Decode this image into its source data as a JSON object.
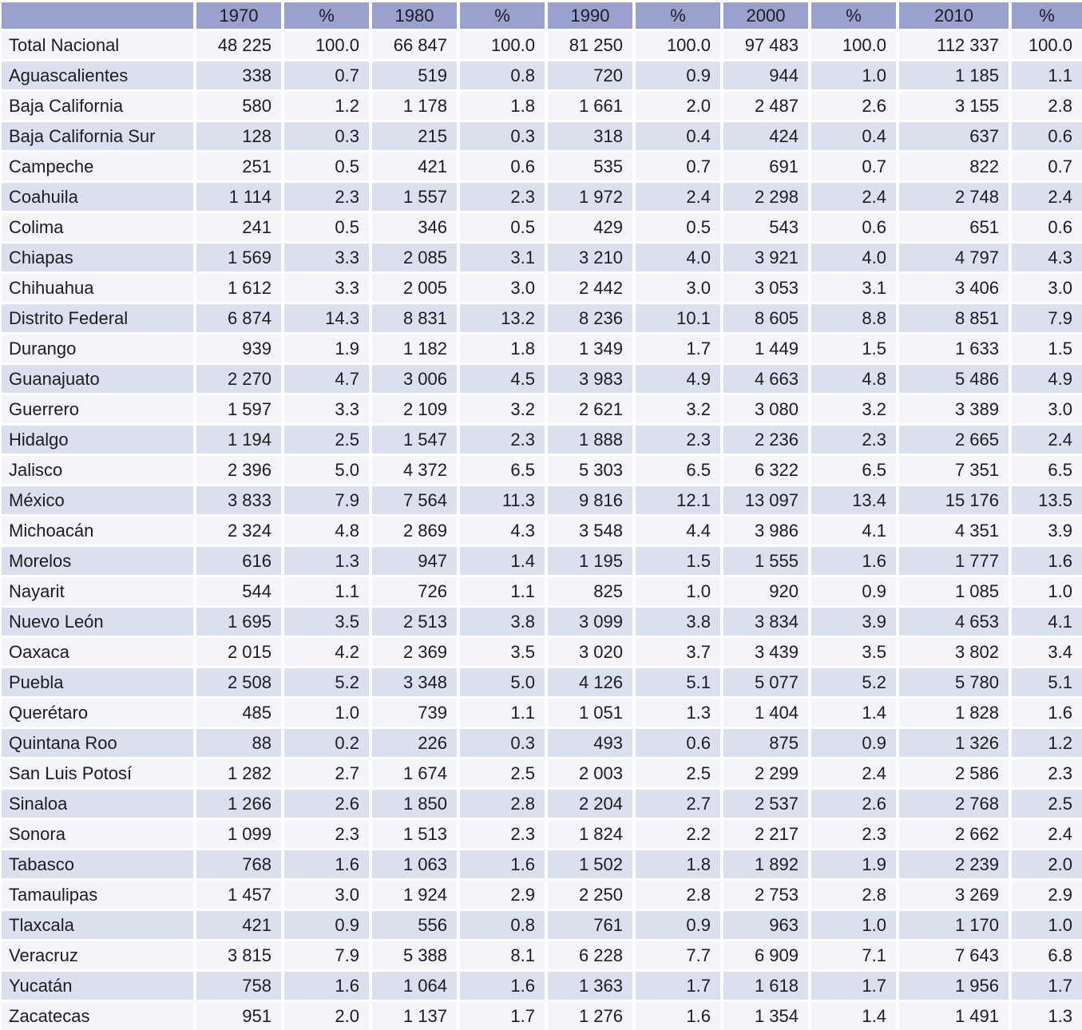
{
  "colors": {
    "header_bg": "#9ba1ce",
    "row_light_bg": "#f4f4f9",
    "row_shade_bg": "#dcdfee",
    "separator": "#ffffff",
    "text": "#1d1d20"
  },
  "chart_data": {
    "type": "table",
    "columns": [
      "",
      "1970",
      "%",
      "1980",
      "%",
      "1990",
      "%",
      "2000",
      "%",
      "2010",
      "%"
    ],
    "rows": [
      {
        "state": "Total Nacional",
        "values": [
          "48 225",
          "100.0",
          "66 847",
          "100.0",
          "81 250",
          "100.0",
          "97 483",
          "100.0",
          "112 337",
          "100.0"
        ]
      },
      {
        "state": "Aguascalientes",
        "values": [
          "338",
          "0.7",
          "519",
          "0.8",
          "720",
          "0.9",
          "944",
          "1.0",
          "1 185",
          "1.1"
        ]
      },
      {
        "state": "Baja California",
        "values": [
          "580",
          "1.2",
          "1 178",
          "1.8",
          "1 661",
          "2.0",
          "2 487",
          "2.6",
          "3 155",
          "2.8"
        ]
      },
      {
        "state": "Baja California Sur",
        "values": [
          "128",
          "0.3",
          "215",
          "0.3",
          "318",
          "0.4",
          "424",
          "0.4",
          "637",
          "0.6"
        ]
      },
      {
        "state": "Campeche",
        "values": [
          "251",
          "0.5",
          "421",
          "0.6",
          "535",
          "0.7",
          "691",
          "0.7",
          "822",
          "0.7"
        ]
      },
      {
        "state": "Coahuila",
        "values": [
          "1 114",
          "2.3",
          "1 557",
          "2.3",
          "1 972",
          "2.4",
          "2 298",
          "2.4",
          "2 748",
          "2.4"
        ]
      },
      {
        "state": "Colima",
        "values": [
          "241",
          "0.5",
          "346",
          "0.5",
          "429",
          "0.5",
          "543",
          "0.6",
          "651",
          "0.6"
        ]
      },
      {
        "state": "Chiapas",
        "values": [
          "1 569",
          "3.3",
          "2 085",
          "3.1",
          "3 210",
          "4.0",
          "3 921",
          "4.0",
          "4 797",
          "4.3"
        ]
      },
      {
        "state": "Chihuahua",
        "values": [
          "1 612",
          "3.3",
          "2 005",
          "3.0",
          "2 442",
          "3.0",
          "3 053",
          "3.1",
          "3 406",
          "3.0"
        ]
      },
      {
        "state": "Distrito Federal",
        "values": [
          "6 874",
          "14.3",
          "8 831",
          "13.2",
          "8 236",
          "10.1",
          "8 605",
          "8.8",
          "8 851",
          "7.9"
        ]
      },
      {
        "state": "Durango",
        "values": [
          "939",
          "1.9",
          "1 182",
          "1.8",
          "1 349",
          "1.7",
          "1 449",
          "1.5",
          "1 633",
          "1.5"
        ]
      },
      {
        "state": "Guanajuato",
        "values": [
          "2 270",
          "4.7",
          "3 006",
          "4.5",
          "3 983",
          "4.9",
          "4 663",
          "4.8",
          "5 486",
          "4.9"
        ]
      },
      {
        "state": "Guerrero",
        "values": [
          "1 597",
          "3.3",
          "2 109",
          "3.2",
          "2 621",
          "3.2",
          "3 080",
          "3.2",
          "3 389",
          "3.0"
        ]
      },
      {
        "state": "Hidalgo",
        "values": [
          "1 194",
          "2.5",
          "1 547",
          "2.3",
          "1 888",
          "2.3",
          "2 236",
          "2.3",
          "2 665",
          "2.4"
        ]
      },
      {
        "state": "Jalisco",
        "values": [
          "2 396",
          "5.0",
          "4 372",
          "6.5",
          "5 303",
          "6.5",
          "6 322",
          "6.5",
          "7 351",
          "6.5"
        ]
      },
      {
        "state": "México",
        "values": [
          "3 833",
          "7.9",
          "7 564",
          "11.3",
          "9 816",
          "12.1",
          "13 097",
          "13.4",
          "15 176",
          "13.5"
        ]
      },
      {
        "state": "Michoacán",
        "values": [
          "2 324",
          "4.8",
          "2 869",
          "4.3",
          "3 548",
          "4.4",
          "3 986",
          "4.1",
          "4 351",
          "3.9"
        ]
      },
      {
        "state": "Morelos",
        "values": [
          "616",
          "1.3",
          "947",
          "1.4",
          "1 195",
          "1.5",
          "1 555",
          "1.6",
          "1 777",
          "1.6"
        ]
      },
      {
        "state": "Nayarit",
        "values": [
          "544",
          "1.1",
          "726",
          "1.1",
          "825",
          "1.0",
          "920",
          "0.9",
          "1 085",
          "1.0"
        ]
      },
      {
        "state": "Nuevo León",
        "values": [
          "1 695",
          "3.5",
          "2 513",
          "3.8",
          "3 099",
          "3.8",
          "3 834",
          "3.9",
          "4 653",
          "4.1"
        ]
      },
      {
        "state": "Oaxaca",
        "values": [
          "2 015",
          "4.2",
          "2 369",
          "3.5",
          "3 020",
          "3.7",
          "3 439",
          "3.5",
          "3 802",
          "3.4"
        ]
      },
      {
        "state": "Puebla",
        "values": [
          "2 508",
          "5.2",
          "3 348",
          "5.0",
          "4 126",
          "5.1",
          "5 077",
          "5.2",
          "5 780",
          "5.1"
        ]
      },
      {
        "state": "Querétaro",
        "values": [
          "485",
          "1.0",
          "739",
          "1.1",
          "1 051",
          "1.3",
          "1 404",
          "1.4",
          "1 828",
          "1.6"
        ]
      },
      {
        "state": "Quintana Roo",
        "values": [
          "88",
          "0.2",
          "226",
          "0.3",
          "493",
          "0.6",
          "875",
          "0.9",
          "1 326",
          "1.2"
        ]
      },
      {
        "state": "San Luis Potosí",
        "values": [
          "1 282",
          "2.7",
          "1 674",
          "2.5",
          "2 003",
          "2.5",
          "2 299",
          "2.4",
          "2 586",
          "2.3"
        ]
      },
      {
        "state": "Sinaloa",
        "values": [
          "1 266",
          "2.6",
          "1 850",
          "2.8",
          "2 204",
          "2.7",
          "2 537",
          "2.6",
          "2 768",
          "2.5"
        ]
      },
      {
        "state": "Sonora",
        "values": [
          "1 099",
          "2.3",
          "1 513",
          "2.3",
          "1 824",
          "2.2",
          "2 217",
          "2.3",
          "2 662",
          "2.4"
        ]
      },
      {
        "state": "Tabasco",
        "values": [
          "768",
          "1.6",
          "1 063",
          "1.6",
          "1 502",
          "1.8",
          "1 892",
          "1.9",
          "2 239",
          "2.0"
        ]
      },
      {
        "state": "Tamaulipas",
        "values": [
          "1 457",
          "3.0",
          "1 924",
          "2.9",
          "2 250",
          "2.8",
          "2 753",
          "2.8",
          "3 269",
          "2.9"
        ]
      },
      {
        "state": "Tlaxcala",
        "values": [
          "421",
          "0.9",
          "556",
          "0.8",
          "761",
          "0.9",
          "963",
          "1.0",
          "1 170",
          "1.0"
        ]
      },
      {
        "state": "Veracruz",
        "values": [
          "3 815",
          "7.9",
          "5 388",
          "8.1",
          "6 228",
          "7.7",
          "6 909",
          "7.1",
          "7 643",
          "6.8"
        ]
      },
      {
        "state": "Yucatán",
        "values": [
          "758",
          "1.6",
          "1 064",
          "1.6",
          "1 363",
          "1.7",
          "1 618",
          "1.7",
          "1 956",
          "1.7"
        ]
      },
      {
        "state": "Zacatecas",
        "values": [
          "951",
          "2.0",
          "1 137",
          "1.7",
          "1 276",
          "1.6",
          "1 354",
          "1.4",
          "1 491",
          "1.3"
        ]
      }
    ]
  }
}
